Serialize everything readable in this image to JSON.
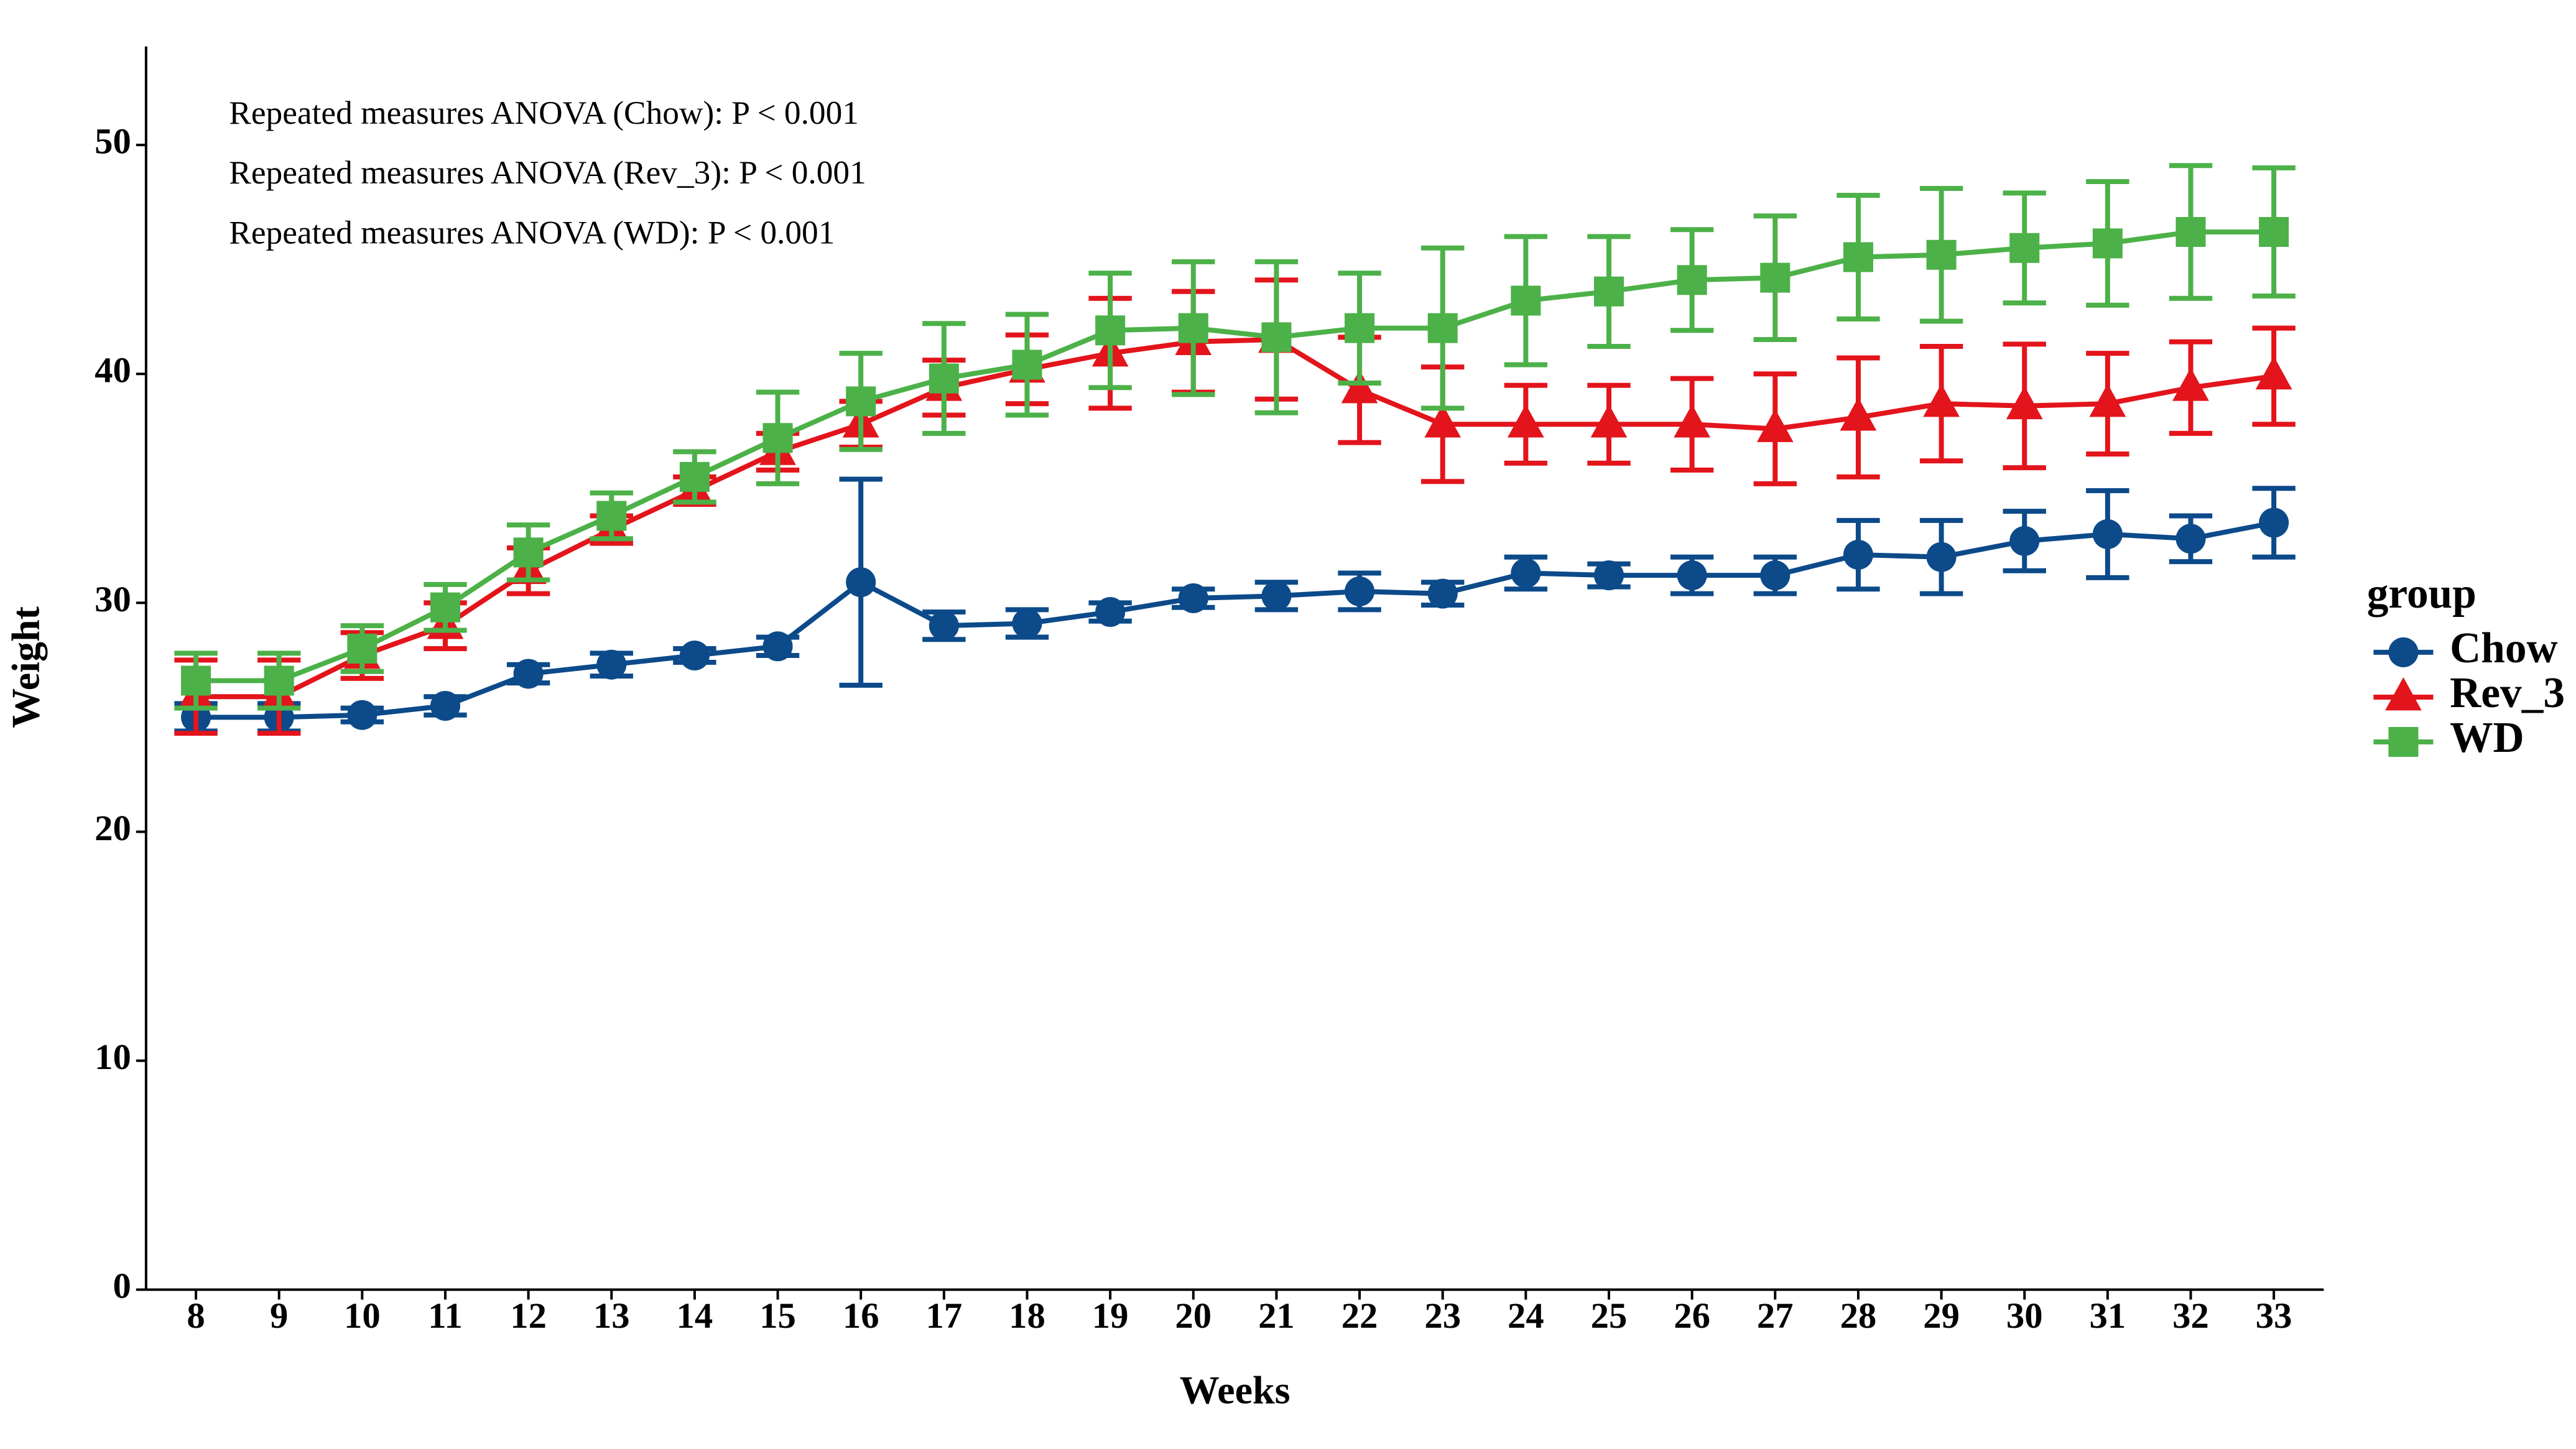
{
  "chart_data": {
    "type": "line",
    "annotations": [
      "Repeated measures ANOVA (Chow):  P < 0.001",
      "Repeated measures ANOVA (Rev_3):  P < 0.001",
      "Repeated measures ANOVA (WD):  P < 0.001"
    ],
    "x_label": "Weeks",
    "y_label": "Weight",
    "legend_title": "group",
    "legend": "right",
    "x": [
      8,
      9,
      10,
      11,
      12,
      13,
      14,
      15,
      16,
      17,
      18,
      19,
      20,
      21,
      22,
      23,
      24,
      25,
      26,
      27,
      28,
      29,
      30,
      31,
      32,
      33
    ],
    "xlim": [
      7.4,
      33.6
    ],
    "xticks": [
      8,
      9,
      10,
      11,
      12,
      13,
      14,
      15,
      16,
      17,
      18,
      19,
      20,
      21,
      22,
      23,
      24,
      25,
      26,
      27,
      28,
      29,
      30,
      31,
      32,
      33
    ],
    "ylim": [
      0,
      54.3
    ],
    "yticks": [
      0,
      10,
      20,
      30,
      40,
      50
    ],
    "series": [
      {
        "name": "Chow",
        "color": "#0c4a8a",
        "marker": "circle",
        "values": [
          25.0,
          25.0,
          25.1,
          25.5,
          26.9,
          27.3,
          27.7,
          28.1,
          30.9,
          29.0,
          29.1,
          29.6,
          30.2,
          30.3,
          30.5,
          30.4,
          31.3,
          31.2,
          31.2,
          31.2,
          32.1,
          32.0,
          32.7,
          33.0,
          32.8,
          33.5
        ],
        "errors": [
          0.6,
          0.6,
          0.3,
          0.4,
          0.4,
          0.5,
          0.3,
          0.4,
          4.5,
          0.6,
          0.6,
          0.4,
          0.4,
          0.6,
          0.8,
          0.5,
          0.7,
          0.5,
          0.8,
          0.8,
          1.5,
          1.6,
          1.3,
          1.9,
          1.0,
          1.5
        ]
      },
      {
        "name": "Rev_3",
        "color": "#e3141b",
        "marker": "triangle",
        "values": [
          25.9,
          25.9,
          27.7,
          29.0,
          31.4,
          33.2,
          34.9,
          36.6,
          37.8,
          39.4,
          40.2,
          40.9,
          41.4,
          41.5,
          39.3,
          37.8,
          37.8,
          37.8,
          37.8,
          37.6,
          38.1,
          38.7,
          38.6,
          38.7,
          39.4,
          39.9
        ],
        "errors": [
          1.6,
          1.6,
          1.0,
          1.0,
          1.0,
          0.6,
          0.6,
          0.8,
          1.0,
          1.2,
          1.5,
          2.4,
          2.2,
          2.6,
          2.3,
          2.5,
          1.7,
          1.7,
          2.0,
          2.4,
          2.6,
          2.5,
          2.7,
          2.2,
          2.0,
          2.1
        ]
      },
      {
        "name": "WD",
        "color": "#4cb148",
        "marker": "square",
        "values": [
          26.6,
          26.6,
          28.0,
          29.8,
          32.2,
          33.8,
          35.5,
          37.2,
          38.8,
          39.8,
          40.4,
          41.9,
          42.0,
          41.6,
          42.0,
          42.0,
          43.2,
          43.6,
          44.1,
          44.2,
          45.1,
          45.2,
          45.5,
          45.7,
          46.2,
          46.2
        ],
        "errors": [
          1.2,
          1.2,
          1.0,
          1.0,
          1.2,
          1.0,
          1.1,
          2.0,
          2.1,
          2.4,
          2.2,
          2.5,
          2.9,
          3.3,
          2.4,
          3.5,
          2.8,
          2.4,
          2.2,
          2.7,
          2.7,
          2.9,
          2.4,
          2.7,
          2.9,
          2.8
        ]
      }
    ]
  }
}
